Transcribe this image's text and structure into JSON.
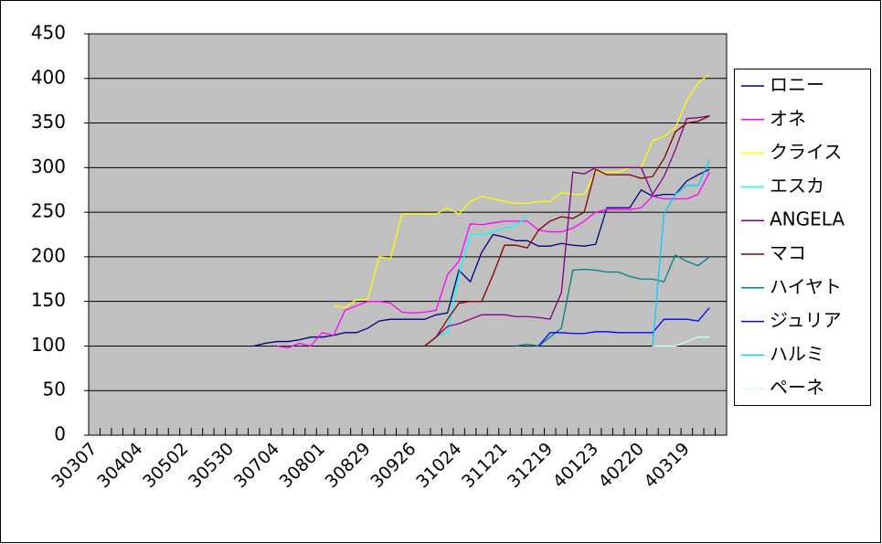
{
  "chart_data": {
    "type": "line",
    "categories": [
      "30307",
      null,
      null,
      null,
      "30404",
      null,
      null,
      null,
      "30502",
      null,
      null,
      null,
      "30530",
      null,
      null,
      null,
      "30704",
      null,
      null,
      null,
      "30801",
      null,
      null,
      null,
      "30829",
      null,
      null,
      null,
      "30926",
      null,
      null,
      null,
      "31024",
      null,
      null,
      null,
      "31121",
      null,
      null,
      null,
      "31219",
      null,
      null,
      null,
      "40123",
      null,
      null,
      null,
      "40220",
      null,
      null,
      null,
      "40319",
      null,
      null,
      null
    ],
    "ylim": [
      0,
      450
    ],
    "yticks": [
      0,
      50,
      100,
      150,
      200,
      250,
      300,
      350,
      400,
      450
    ],
    "grid": true,
    "legend": "right",
    "series": [
      {
        "name": "ロニー",
        "color": "#000080",
        "values": [
          null,
          null,
          null,
          null,
          null,
          null,
          null,
          null,
          null,
          null,
          null,
          null,
          null,
          null,
          100,
          103,
          105,
          105,
          107,
          110,
          110,
          112,
          115,
          115,
          120,
          128,
          130,
          130,
          130,
          130,
          135,
          137,
          185,
          172,
          205,
          225,
          222,
          218,
          218,
          212,
          212,
          215,
          213,
          212,
          214,
          255,
          255,
          255,
          275,
          268,
          270,
          270,
          285,
          292,
          298,
          null
        ]
      },
      {
        "name": "オネ",
        "color": "#ff00ff",
        "values": [
          null,
          null,
          null,
          null,
          null,
          null,
          null,
          null,
          null,
          null,
          null,
          null,
          null,
          null,
          null,
          null,
          100,
          98,
          103,
          100,
          115,
          112,
          140,
          145,
          150,
          150,
          148,
          138,
          137,
          138,
          140,
          180,
          195,
          237,
          236,
          238,
          240,
          240,
          240,
          230,
          228,
          228,
          232,
          240,
          250,
          253,
          253,
          253,
          255,
          268,
          265,
          265,
          265,
          270,
          295,
          null
        ]
      },
      {
        "name": "クライス",
        "color": "#ffff00",
        "values": [
          null,
          null,
          null,
          null,
          null,
          null,
          null,
          null,
          null,
          null,
          null,
          null,
          null,
          null,
          null,
          null,
          null,
          null,
          null,
          null,
          null,
          145,
          143,
          152,
          152,
          200,
          198,
          248,
          248,
          248,
          248,
          255,
          248,
          262,
          268,
          265,
          262,
          260,
          260,
          262,
          262,
          272,
          270,
          270,
          295,
          295,
          295,
          300,
          300,
          330,
          335,
          345,
          375,
          395,
          405,
          null
        ]
      },
      {
        "name": "エスカ",
        "color": "#00ffff",
        "values": [
          null,
          null,
          null,
          null,
          null,
          null,
          null,
          null,
          null,
          null,
          null,
          null,
          null,
          null,
          null,
          null,
          null,
          null,
          null,
          null,
          null,
          null,
          null,
          null,
          null,
          null,
          null,
          null,
          null,
          null,
          110,
          115,
          180,
          225,
          225,
          228,
          232,
          235,
          245,
          null,
          null,
          null,
          null,
          null,
          null,
          null,
          null,
          null,
          null,
          null,
          null,
          null,
          null,
          null,
          null,
          null
        ]
      },
      {
        "name": "ANGELA",
        "color": "#800080",
        "values": [
          null,
          null,
          null,
          null,
          null,
          null,
          null,
          null,
          null,
          null,
          null,
          null,
          null,
          null,
          null,
          null,
          null,
          null,
          null,
          null,
          null,
          null,
          null,
          null,
          null,
          null,
          null,
          null,
          null,
          100,
          110,
          122,
          125,
          130,
          135,
          135,
          135,
          133,
          133,
          132,
          130,
          160,
          295,
          293,
          300,
          300,
          300,
          300,
          300,
          270,
          290,
          320,
          355,
          356,
          358,
          null
        ]
      },
      {
        "name": "マコ",
        "color": "#800000",
        "values": [
          null,
          null,
          null,
          null,
          null,
          null,
          null,
          null,
          null,
          null,
          null,
          null,
          null,
          null,
          null,
          null,
          null,
          null,
          null,
          null,
          null,
          null,
          null,
          null,
          null,
          null,
          null,
          null,
          null,
          100,
          110,
          130,
          148,
          150,
          150,
          180,
          213,
          213,
          210,
          230,
          240,
          245,
          243,
          250,
          298,
          292,
          292,
          292,
          288,
          290,
          310,
          340,
          350,
          352,
          358,
          null
        ]
      },
      {
        "name": "ハイヤト",
        "color": "#008080",
        "values": [
          null,
          null,
          null,
          null,
          null,
          null,
          null,
          null,
          null,
          null,
          null,
          null,
          null,
          null,
          null,
          null,
          null,
          null,
          null,
          null,
          null,
          null,
          null,
          null,
          null,
          null,
          null,
          null,
          null,
          null,
          null,
          null,
          null,
          null,
          null,
          null,
          null,
          100,
          102,
          100,
          110,
          120,
          185,
          186,
          185,
          183,
          183,
          178,
          175,
          175,
          172,
          202,
          195,
          190,
          200,
          null
        ]
      },
      {
        "name": "ジュリア",
        "color": "#0000ff",
        "values": [
          null,
          null,
          null,
          null,
          null,
          null,
          null,
          null,
          null,
          null,
          null,
          null,
          null,
          null,
          null,
          null,
          null,
          null,
          null,
          null,
          null,
          null,
          null,
          null,
          null,
          null,
          null,
          null,
          null,
          null,
          null,
          null,
          null,
          null,
          null,
          null,
          null,
          null,
          null,
          100,
          115,
          115,
          114,
          114,
          116,
          116,
          115,
          115,
          115,
          115,
          130,
          130,
          130,
          128,
          143,
          null
        ]
      },
      {
        "name": "ハルミ",
        "color": "#00ccff",
        "values": [
          null,
          null,
          null,
          null,
          null,
          null,
          null,
          null,
          null,
          null,
          null,
          null,
          null,
          null,
          null,
          null,
          null,
          null,
          null,
          null,
          null,
          null,
          null,
          null,
          null,
          null,
          null,
          null,
          null,
          null,
          null,
          null,
          null,
          null,
          null,
          null,
          null,
          null,
          null,
          null,
          null,
          null,
          null,
          null,
          null,
          null,
          null,
          null,
          null,
          100,
          248,
          270,
          280,
          280,
          308,
          null
        ]
      },
      {
        "name": "ペーネ",
        "color": "#ccffff",
        "values": [
          null,
          null,
          null,
          null,
          null,
          null,
          null,
          null,
          null,
          null,
          null,
          null,
          null,
          null,
          null,
          null,
          null,
          null,
          null,
          null,
          null,
          null,
          null,
          null,
          null,
          null,
          null,
          null,
          null,
          null,
          null,
          null,
          null,
          null,
          null,
          null,
          null,
          null,
          null,
          null,
          null,
          null,
          null,
          null,
          null,
          null,
          null,
          null,
          null,
          100,
          100,
          100,
          105,
          110,
          110,
          null
        ]
      }
    ]
  }
}
